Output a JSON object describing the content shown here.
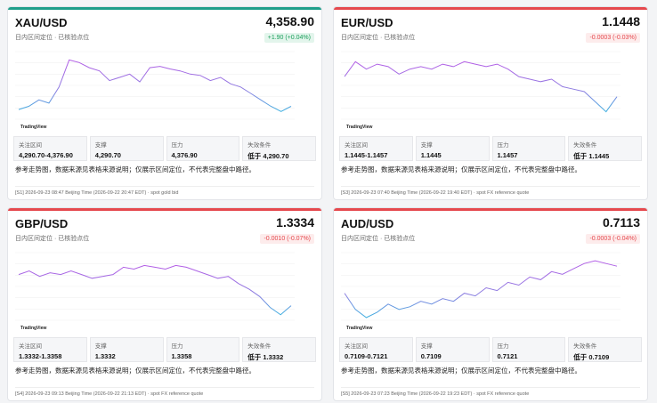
{
  "cards": [
    {
      "symbol": "XAU/USD",
      "price": "4,358.90",
      "subtitle": "日内区间定位 · 已核验点位",
      "change": "+1.90 (+0.04%)",
      "direction": "up",
      "stats": [
        {
          "label": "关注区间",
          "value": "4,290.70-4,376.90"
        },
        {
          "label": "支撑",
          "value": "4,290.70"
        },
        {
          "label": "压力",
          "value": "4,376.90"
        },
        {
          "label": "失效条件",
          "value": "低于 4,290.70"
        }
      ],
      "note": "参考走势图，数据来源见表格来源说明；仅展示区间定位，不代表完整盘中路径。",
      "source": "[S1] 2026-09-23 08:47 Beijing Time (2026-09-22 20:47 EDT) · spot gold bid",
      "chart": {
        "type": "line",
        "watermark": "TradingView",
        "ylim": [
          4280,
          4385
        ],
        "values": [
          4295,
          4300,
          4310,
          4305,
          4330,
          4372,
          4368,
          4360,
          4355,
          4340,
          4345,
          4350,
          4338,
          4360,
          4362,
          4358,
          4355,
          4350,
          4348,
          4340,
          4345,
          4335,
          4330,
          4320,
          4310,
          4300,
          4292,
          4300
        ]
      }
    },
    {
      "symbol": "EUR/USD",
      "price": "1.1448",
      "subtitle": "日内区间定位 · 已核验点位",
      "change": "-0.0003 (-0.03%)",
      "direction": "down",
      "stats": [
        {
          "label": "关注区间",
          "value": "1.1445-1.1457"
        },
        {
          "label": "支撑",
          "value": "1.1445"
        },
        {
          "label": "压力",
          "value": "1.1457"
        },
        {
          "label": "失效条件",
          "value": "低于 1.1445"
        }
      ],
      "note": "参考走势图，数据来源见表格来源说明；仅展示区间定位，不代表完整盘中路径。",
      "source": "[S3] 2026-09-23 07:40 Beijing Time (2026-09-22 19:40 EDT) · spot FX reference quote",
      "chart": {
        "type": "line",
        "watermark": "TradingView",
        "ylim": [
          1.1435,
          1.1462
        ],
        "values": [
          1.1452,
          1.1458,
          1.1455,
          1.1457,
          1.1456,
          1.1453,
          1.1455,
          1.1456,
          1.1455,
          1.1457,
          1.1456,
          1.1458,
          1.1457,
          1.1456,
          1.1457,
          1.1455,
          1.1452,
          1.1451,
          1.145,
          1.1451,
          1.1448,
          1.1447,
          1.1446,
          1.1442,
          1.1438,
          1.1444
        ]
      }
    },
    {
      "symbol": "GBP/USD",
      "price": "1.3334",
      "subtitle": "日内区间定位 · 已核验点位",
      "change": "-0.0010 (-0.07%)",
      "direction": "down",
      "stats": [
        {
          "label": "关注区间",
          "value": "1.3332-1.3358"
        },
        {
          "label": "支撑",
          "value": "1.3332"
        },
        {
          "label": "压力",
          "value": "1.3358"
        },
        {
          "label": "失效条件",
          "value": "低于 1.3332"
        }
      ],
      "note": "参考走势图，数据来源见表格来源说明；仅展示区间定位，不代表完整盘中路径。",
      "source": "[S4] 2026-09-23 09:13 Beijing Time (2026-09-22 21:13 EDT) · spot FX reference quote",
      "chart": {
        "type": "line",
        "watermark": "TradingView",
        "ylim": [
          1.3325,
          1.3362
        ],
        "values": [
          1.335,
          1.3352,
          1.3349,
          1.3351,
          1.335,
          1.3352,
          1.335,
          1.3348,
          1.3349,
          1.335,
          1.3354,
          1.3353,
          1.3355,
          1.3354,
          1.3353,
          1.3355,
          1.3354,
          1.3352,
          1.335,
          1.3348,
          1.3349,
          1.3345,
          1.3342,
          1.3338,
          1.3332,
          1.3328,
          1.3333
        ]
      }
    },
    {
      "symbol": "AUD/USD",
      "price": "0.7113",
      "subtitle": "日内区间定位 · 已核验点位",
      "change": "-0.0003 (-0.04%)",
      "direction": "down",
      "stats": [
        {
          "label": "关注区间",
          "value": "0.7109-0.7121"
        },
        {
          "label": "支撑",
          "value": "0.7109"
        },
        {
          "label": "压力",
          "value": "0.7121"
        },
        {
          "label": "失效条件",
          "value": "低于 0.7109"
        }
      ],
      "note": "参考走势图，数据来源见表格来源说明；仅展示区间定位，不代表完整盘中路径。",
      "source": "[S5] 2026-09-23 07:23 Beijing Time (2026-09-22 19:23 EDT) · spot FX reference quote",
      "chart": {
        "type": "line",
        "watermark": "TradingView",
        "ylim": [
          0.71,
          0.7125
        ],
        "values": [
          0.711,
          0.7104,
          0.7101,
          0.7103,
          0.7106,
          0.7104,
          0.7105,
          0.7107,
          0.7106,
          0.7108,
          0.7107,
          0.711,
          0.7109,
          0.7112,
          0.7111,
          0.7114,
          0.7113,
          0.7116,
          0.7115,
          0.7118,
          0.7117,
          0.7119,
          0.7121,
          0.7122,
          0.7121,
          0.712
        ]
      }
    }
  ]
}
